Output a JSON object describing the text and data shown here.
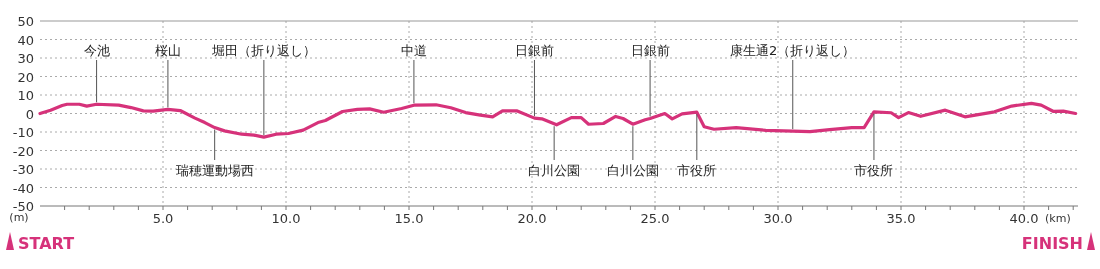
{
  "chart_data": {
    "type": "line",
    "xlabel": "(km)",
    "ylabel": "(m)",
    "color": "#d6327a",
    "x": [
      0,
      0.43,
      0.9,
      1.1,
      1.6,
      1.9,
      2.3,
      3.2,
      3.7,
      4.2,
      4.6,
      5.2,
      5.7,
      6.3,
      6.7,
      7.1,
      7.5,
      8.2,
      8.7,
      9.1,
      9.6,
      10.1,
      10.7,
      11.3,
      11.6,
      12.3,
      12.9,
      13.4,
      13.97,
      14.7,
      15.2,
      16.1,
      16.7,
      17.3,
      17.9,
      18.4,
      18.8,
      19.4,
      20.1,
      20.4,
      21.0,
      21.6,
      22.0,
      22.3,
      22.9,
      23.4,
      23.7,
      24.1,
      24.6,
      24.8,
      25.4,
      25.7,
      26.1,
      26.7,
      27.0,
      27.4,
      28.3,
      29.5,
      30.6,
      31.3,
      32.1,
      33.0,
      33.5,
      33.9,
      34.6,
      34.9,
      35.3,
      35.8,
      36.8,
      37.6,
      38.8,
      39.5,
      40.3,
      40.7,
      41.2,
      41.6,
      42.1
    ],
    "values": [
      0,
      1.8,
      4.3,
      5,
      5,
      4,
      5,
      4.5,
      3.2,
      1.4,
      1.3,
      2.2,
      1.6,
      -2.5,
      -4.9,
      -7.6,
      -9.4,
      -11.2,
      -11.7,
      -12.8,
      -11.2,
      -10.8,
      -9,
      -4.9,
      -3.8,
      1.1,
      2.2,
      2.5,
      0.7,
      2.7,
      4.5,
      4.7,
      3.1,
      0.5,
      -0.9,
      -1.8,
      1.4,
      1.4,
      -2.5,
      -2.9,
      -6.1,
      -2.2,
      -2.2,
      -5.8,
      -5.4,
      -1.6,
      -2.7,
      -5.8,
      -3.4,
      -2.7,
      0,
      -2.9,
      -0.2,
      0.7,
      -7.2,
      -8.5,
      -7.6,
      -9.1,
      -9.5,
      -9.8,
      -8.7,
      -7.6,
      -7.6,
      0.9,
      0.4,
      -2.2,
      0.5,
      -1.5,
      1.8,
      -1.8,
      0.9,
      4,
      5.5,
      4.5,
      1.1,
      1.3,
      0
    ],
    "xlim": [
      0,
      42.195
    ],
    "ylim": [
      -50,
      50
    ],
    "yticks": [
      -50,
      -40,
      -30,
      -20,
      -10,
      0,
      10,
      20,
      30,
      40,
      50
    ],
    "xticks": [
      {
        "value": 1,
        "label": null
      },
      {
        "value": 2,
        "label": null
      },
      {
        "value": 3,
        "label": null
      },
      {
        "value": 4,
        "label": null
      },
      {
        "value": 5,
        "label": "5.0"
      },
      {
        "value": 6,
        "label": null
      },
      {
        "value": 7,
        "label": null
      },
      {
        "value": 8,
        "label": null
      },
      {
        "value": 9,
        "label": null
      },
      {
        "value": 10,
        "label": "10.0"
      },
      {
        "value": 11,
        "label": null
      },
      {
        "value": 12,
        "label": null
      },
      {
        "value": 13,
        "label": null
      },
      {
        "value": 14,
        "label": null
      },
      {
        "value": 15,
        "label": "15.0"
      },
      {
        "value": 16,
        "label": null
      },
      {
        "value": 17,
        "label": null
      },
      {
        "value": 18,
        "label": null
      },
      {
        "value": 19,
        "label": null
      },
      {
        "value": 20,
        "label": "20.0"
      },
      {
        "value": 21,
        "label": null
      },
      {
        "value": 22,
        "label": null
      },
      {
        "value": 23,
        "label": null
      },
      {
        "value": 24,
        "label": null
      },
      {
        "value": 25,
        "label": "25.0"
      },
      {
        "value": 26,
        "label": null
      },
      {
        "value": 27,
        "label": null
      },
      {
        "value": 28,
        "label": null
      },
      {
        "value": 29,
        "label": null
      },
      {
        "value": 30,
        "label": "30.0"
      },
      {
        "value": 31,
        "label": null
      },
      {
        "value": 32,
        "label": null
      },
      {
        "value": 33,
        "label": null
      },
      {
        "value": 34,
        "label": null
      },
      {
        "value": 35,
        "label": "35.0"
      },
      {
        "value": 36,
        "label": null
      },
      {
        "value": 37,
        "label": null
      },
      {
        "value": 38,
        "label": null
      },
      {
        "value": 39,
        "label": null
      },
      {
        "value": 40,
        "label": "40.0"
      },
      {
        "value": 41,
        "label": null
      },
      {
        "value": 42,
        "label": null
      }
    ],
    "grid": true,
    "annotations": [
      {
        "text": "今池",
        "x": 2.3,
        "y": 5
      },
      {
        "text": "桜山",
        "x": 5.2,
        "y": 2.2
      },
      {
        "text": "堀田（折り返し）",
        "x": 9.1,
        "y": -12.8
      },
      {
        "text": "中道",
        "x": 15.2,
        "y": 4.5
      },
      {
        "text": "日銀前",
        "x": 20.1,
        "y": -2.5
      },
      {
        "text": "日銀前",
        "x": 24.8,
        "y": -2.7
      },
      {
        "text": "康生通2（折り返し）",
        "x": 30.6,
        "y": -9.5
      },
      {
        "text": "瑞穂運動場西",
        "x": 7.1,
        "y": -7.6
      },
      {
        "text": "白川公園",
        "x": 20.9,
        "y": -5.8
      },
      {
        "text": "白川公園",
        "x": 24.1,
        "y": -5.8
      },
      {
        "text": "市役所",
        "x": 26.7,
        "y": 0.7
      },
      {
        "text": "市役所",
        "x": 33.9,
        "y": 0.9
      },
      "START",
      "FINISH"
    ]
  }
}
